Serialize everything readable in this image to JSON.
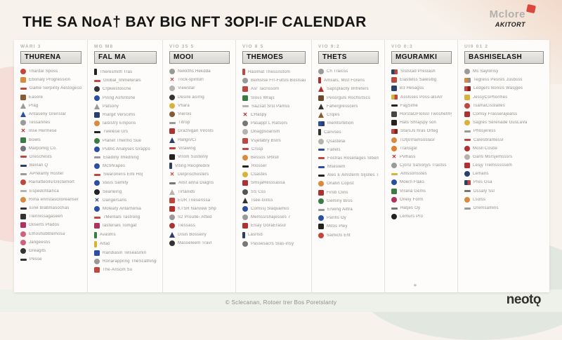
{
  "page": {
    "title": "THE SA NoA† BAY BIG NFT 3OPI-IF CALENDAR"
  },
  "brand_top": {
    "name": "Mclore",
    "sub": "AKITORT",
    "accent": "#d94a3d"
  },
  "footer": {
    "copyright": "© Sclecanan, Rotoer trer Bos Poretslanty",
    "brand": "neotǫ",
    "mark": "∗"
  },
  "columns": [
    {
      "tag": "WARI 3",
      "header": "THURENA",
      "width": 105,
      "items": [
        {
          "s": "circle",
          "c": "#c0473f",
          "t": "Thardal Sposs"
        },
        {
          "s": "square",
          "c": "#d98a3d",
          "t": "Ebonaly Progression"
        },
        {
          "s": "dash",
          "c": "#c0473f",
          "t": "Game Serpinty Aestogeson"
        },
        {
          "s": "square",
          "c": "#8a5a33",
          "t": "Easore"
        },
        {
          "s": "triangle",
          "c": "#9a9a98",
          "t": "Prag"
        },
        {
          "s": "triangle",
          "c": "#2b4fa0",
          "t": "Antaseny Grenslar"
        },
        {
          "s": "circle",
          "c": "#9a9a98",
          "t": "Tessannes"
        },
        {
          "s": "cross",
          "c": "#b03030",
          "t": "Inse Hermese"
        },
        {
          "s": "square",
          "c": "#3a7d44",
          "t": "Bowls"
        },
        {
          "s": "circle",
          "c": "#777777",
          "t": "Marpomig Co."
        },
        {
          "s": "dash",
          "c": "#c0473f",
          "t": "Dreschests"
        },
        {
          "s": "dash",
          "c": "#2b3f6b",
          "t": "Bexlan Q"
        },
        {
          "s": "dash",
          "c": "#9a9a98",
          "t": "APrelanty Roster"
        },
        {
          "s": "circle",
          "c": "#c0473f",
          "t": "Rainatteolls/Glictemort"
        },
        {
          "s": "dash",
          "c": "#b5b3ae",
          "t": "Espedchtainca"
        },
        {
          "s": "circle",
          "c": "#d98a3d",
          "t": "Rima enristasGloreanser"
        },
        {
          "s": "dash",
          "c": "#333333",
          "t": "Eine brabmasochas"
        },
        {
          "s": "square",
          "c": "#333333",
          "t": "Tlennissagaseen"
        },
        {
          "s": "square",
          "c": "#b03060",
          "t": "Gliserts Plados"
        },
        {
          "s": "circle",
          "c": "#d06080",
          "t": "Ethoshubbtemosa"
        },
        {
          "s": "circle",
          "c": "#d06080",
          "t": "Jangeestis"
        },
        {
          "s": "circle",
          "c": "#333333",
          "t": "Greagits"
        },
        {
          "s": "dash",
          "c": "#333333",
          "t": "Pesse"
        }
      ]
    },
    {
      "tag": "MG M8",
      "header": "FAL MA",
      "width": 107,
      "items": [
        {
          "s": "bar",
          "c": "#222222",
          "t": "Theresmith Tras"
        },
        {
          "s": "dash",
          "c": "#c0473f",
          "t": "Global_Immeterals"
        },
        {
          "s": "circle",
          "c": "#333333",
          "t": "Crpkeistoscne"
        },
        {
          "s": "circle",
          "c": "#2b4fa0",
          "t": "Piring Ashintone"
        },
        {
          "s": "triangle",
          "c": "#9a9a98",
          "t": "Patsony"
        },
        {
          "s": "square",
          "c": "#2b3f6b",
          "t": "Riargit Verscims"
        },
        {
          "s": "circle",
          "c": "#d98a3d",
          "t": "Iaislstry Emporis"
        },
        {
          "s": "dash",
          "c": "#222222",
          "t": "Twelese Urs"
        },
        {
          "s": "circle",
          "c": "#3a7d44",
          "t": "Planet Thermo Sue"
        },
        {
          "s": "circle",
          "c": "#2b4fa0",
          "t": "Public Analyses Grapps"
        },
        {
          "s": "dash",
          "c": "#9a9a98",
          "t": "Elaidiny Imedning"
        },
        {
          "s": "circle",
          "c": "#2b4fa0",
          "t": "McShrapes"
        },
        {
          "s": "dash",
          "c": "#c0473f",
          "t": "Swaroneris Emi Hoj"
        },
        {
          "s": "circle",
          "c": "#2b4fa0",
          "t": "Vasis Samity"
        },
        {
          "s": "circle",
          "c": "#222222",
          "t": "Searleirig"
        },
        {
          "s": "cross",
          "c": "#2b3f6b",
          "t": "Dangersans"
        },
        {
          "s": "circle",
          "c": "#2b4fa0",
          "t": "Moleaty Antarhenia"
        },
        {
          "s": "dash",
          "c": "#c0473f",
          "t": "7Mentals Tastrong"
        },
        {
          "s": "square",
          "c": "#b03060",
          "t": "Iasterials Tomgat"
        },
        {
          "s": "bar",
          "c": "#3a7d44",
          "t": "Avastris"
        },
        {
          "s": "bar",
          "c": "#d9b23a",
          "t": "Altao"
        },
        {
          "s": "square",
          "c": "#2b4fa0",
          "t": "Randiasin Telseasmin"
        },
        {
          "s": "circle",
          "c": "#9a9a98",
          "t": "Ronarappring TheScathingenU"
        },
        {
          "s": "square",
          "c": "#c0473f",
          "t": "The-Ansom Su"
        }
      ]
    },
    {
      "tag": "VIO 35 5",
      "header": "MOOI",
      "width": 104,
      "items": [
        {
          "s": "circle",
          "c": "#9a9a98",
          "t": "Nekkths Hekdda"
        },
        {
          "s": "cross",
          "c": "#c0473f",
          "t": "Trick-spinturl"
        },
        {
          "s": "circle",
          "c": "#b5b3ae",
          "t": "Viewstar"
        },
        {
          "s": "circle",
          "c": "#333333",
          "t": "Desire acirng"
        },
        {
          "s": "circle",
          "c": "#d9b23a",
          "t": "Vfiara"
        },
        {
          "s": "circle",
          "c": "#8a5a33",
          "t": "Vierois"
        },
        {
          "s": "dash",
          "c": "#9a9a98",
          "t": "Titrop"
        },
        {
          "s": "square",
          "c": "#b03030",
          "t": "Graznigan Virosts"
        },
        {
          "s": "triangle",
          "c": "#2b3f6b",
          "t": "Hallgri/Ci"
        },
        {
          "s": "dash",
          "c": "#c0473f",
          "t": "Virawing"
        },
        {
          "s": "square",
          "c": "#222222",
          "t": "Virom Susterily"
        },
        {
          "s": "bar",
          "c": "#2b3f6b",
          "t": "Viting Recipledini"
        },
        {
          "s": "cross",
          "c": "#c0473f",
          "t": "Delprischosters"
        },
        {
          "s": "dash",
          "c": "#777777",
          "t": "Alist anna Diagris"
        },
        {
          "s": "triangle",
          "c": "#b5b3ae",
          "t": "Tirtanids"
        },
        {
          "s": "square",
          "c": "#c0473f",
          "t": "EUR Trieserissa"
        },
        {
          "s": "square",
          "c": "#b03030",
          "t": "KTSR Narview Shp"
        },
        {
          "s": "circle",
          "c": "#9a9a98",
          "t": "S2 Proulle- Afted"
        },
        {
          "s": "circle",
          "c": "#b03030",
          "t": "Tiessass"
        },
        {
          "s": "triangle",
          "c": "#2b3f6b",
          "t": "Disin Bosseiry"
        },
        {
          "s": "circle",
          "c": "#333333",
          "t": "Masseleem Travl"
        }
      ]
    },
    {
      "tag": "VIO 8 5",
      "header": "THEMOES",
      "width": 108,
      "items": [
        {
          "s": "bar",
          "c": "#c0473f",
          "t": "Haslmat Thessristom"
        },
        {
          "s": "circle",
          "c": "#9a9a98",
          "t": "Bemslse Frr-Futsls Boslsaus"
        },
        {
          "s": "square",
          "c": "#c0473f",
          "t": "Asr Tacrissom"
        },
        {
          "s": "square",
          "c": "#3a7d44",
          "t": "Sloss Wrajs"
        },
        {
          "s": "dash",
          "c": "#b5b3ae",
          "t": "SaZsat Srsl Pamss"
        },
        {
          "s": "cross",
          "c": "#b03030",
          "t": "CHaspy"
        },
        {
          "s": "circle",
          "c": "#777777",
          "t": "Pasappl L Ratsors"
        },
        {
          "s": "circle",
          "c": "#b5b3ae",
          "t": "Onagpsoarism"
        },
        {
          "s": "square",
          "c": "#c0473f",
          "t": "Vsjetabry Bslrs"
        },
        {
          "s": "dash",
          "c": "#c0473f",
          "t": "Crssp"
        },
        {
          "s": "circle",
          "c": "#d98a3d",
          "t": "Bessos sRksll"
        },
        {
          "s": "dash",
          "c": "#222222",
          "t": "Rlosser"
        },
        {
          "s": "circle",
          "c": "#d9b23a",
          "t": "Csastes"
        },
        {
          "s": "square",
          "c": "#b03030",
          "t": "SmsjaResssassa"
        },
        {
          "s": "circle",
          "c": "#555555",
          "t": "SS Css"
        },
        {
          "s": "triangle",
          "c": "#333333",
          "t": "Tsee-Gillss"
        },
        {
          "s": "circle",
          "c": "#2b4fa0",
          "t": "Comssj Slaquamss"
        },
        {
          "s": "circle",
          "c": "#9a9a98",
          "t": "Memssrshajesses 7"
        },
        {
          "s": "square",
          "c": "#b03030",
          "t": "Elsay GoraErasul"
        },
        {
          "s": "bar",
          "c": "#2b3f6b",
          "t": "Lasrlsd"
        },
        {
          "s": "circle",
          "c": "#777777",
          "t": "Passesacrs Slas-irlsy"
        }
      ]
    },
    {
      "tag": "VIO 9:2",
      "header": "THETS",
      "width": 104,
      "items": [
        {
          "s": "circle",
          "c": "#9a9a98",
          "t": "Ch Traicss"
        },
        {
          "s": "bar",
          "c": "#b03030",
          "t": "Amsals, Mist Forens"
        },
        {
          "s": "triangle",
          "c": "#b03030",
          "t": "Sapsplaclly Imfreters"
        },
        {
          "s": "square",
          "c": "#6b4a2b",
          "t": "Peosrguls Rochsrtscs"
        },
        {
          "s": "triangle",
          "c": "#333333",
          "t": "Fahergresscers"
        },
        {
          "s": "triangle",
          "c": "#8a5a33",
          "t": "Crqies"
        },
        {
          "s": "flag",
          "c": "#2b4fa0",
          "c2": "#2b3f6b",
          "t": "Inemtsrtetion"
        },
        {
          "s": "bar",
          "c": "#333333",
          "t": "Canvses"
        },
        {
          "s": "circle",
          "c": "#b5b3ae",
          "t": "Qsastelai"
        },
        {
          "s": "dash",
          "c": "#2b4fa0",
          "t": "Fallels"
        },
        {
          "s": "dash",
          "c": "#c0473f",
          "t": "Fostras Rosellages Slbeme"
        },
        {
          "s": "dash",
          "c": "#2b4fa0",
          "t": "Mseslem"
        },
        {
          "s": "dash",
          "c": "#222222",
          "t": "Ales E Amsterm Sljslles Ters"
        },
        {
          "s": "circle",
          "c": "#d98a3d",
          "t": "Onatin Copist"
        },
        {
          "s": "square",
          "c": "#b03030",
          "t": "Firsb Clins"
        },
        {
          "s": "circle",
          "c": "#3a7d44",
          "t": "Geminy Bros"
        },
        {
          "s": "dash",
          "c": "#9a9a98",
          "t": "Erwing Ailtra"
        },
        {
          "s": "circle",
          "c": "#2b4fa0",
          "t": "Parifis Oy"
        },
        {
          "s": "square",
          "c": "#222222",
          "t": "Mitos Pley"
        },
        {
          "s": "circle",
          "c": "#c0473f",
          "t": "Samicls Ent"
        }
      ]
    },
    {
      "tag": "VIO 0:3",
      "header": "MGURAMKI",
      "width": 104,
      "items": [
        {
          "s": "flag",
          "c": "#2b3f6b",
          "c2": "#c0473f",
          "t": "Slststad Preslash"
        },
        {
          "s": "square",
          "c": "#c0473f",
          "t": "Elastelss Salesibg"
        },
        {
          "s": "square",
          "c": "#2b3f6b",
          "t": "B3 Hesagss"
        },
        {
          "s": "flag",
          "c": "#d9b23a",
          "c2": "#c0473f",
          "t": "Asslsses Poss-alsArr"
        },
        {
          "s": "dash",
          "c": "#222222",
          "t": "FajjSime"
        },
        {
          "s": "square",
          "c": "#444444",
          "t": "HorstaGFlolssl Twoshetmy"
        },
        {
          "s": "square",
          "c": "#222222",
          "t": "Hats Shrajspy son"
        },
        {
          "s": "flag",
          "c": "#c0473f",
          "c2": "#8a1f1f",
          "t": "StarsJs hras Orteg"
        },
        {
          "s": "circle",
          "c": "#d98a3d",
          "t": "TDtjoVlamsoslasr"
        },
        {
          "s": "circle",
          "c": "#e08030",
          "t": "Transgal"
        },
        {
          "s": "cross",
          "c": "#b03030",
          "t": "Pvlhass"
        },
        {
          "s": "circle",
          "c": "#9a9a98",
          "t": "Cjorsl SaSorjys Trastss"
        },
        {
          "s": "dash",
          "c": "#d9b23a",
          "t": "Amssonsstes"
        },
        {
          "s": "circle",
          "c": "#2b4fa0",
          "t": "Moern Flaks"
        },
        {
          "s": "square",
          "c": "#3a7d44",
          "t": "Virana Gems"
        },
        {
          "s": "circle",
          "c": "#b03060",
          "t": "Oneiy Form"
        },
        {
          "s": "dash",
          "c": "#777777",
          "t": "Hatjes Oy"
        },
        {
          "s": "circle",
          "c": "#222222",
          "t": "Lemurs Pro"
        }
      ]
    },
    {
      "tag": "UI9 01 2",
      "header": "BASHISELASH",
      "width": 130,
      "items": [
        {
          "s": "circle",
          "c": "#9a9a98",
          "t": "Ms Saylorisy"
        },
        {
          "s": "flag",
          "c": "#d98a3d",
          "c2": "#8f8d88",
          "t": "Tegress Peslsls Jusbsss"
        },
        {
          "s": "flag",
          "c": "#c0473f",
          "c2": "#8a1f1f",
          "t": "Ledgers Bonsls Wasjges"
        },
        {
          "s": "square",
          "c": "#d9b23a",
          "t": "JessyCsPhormes"
        },
        {
          "s": "circle",
          "c": "#c0473f",
          "t": "TsamaCisslalles"
        },
        {
          "s": "square",
          "c": "#b03030",
          "t": "Comsy Frasserajealss"
        },
        {
          "s": "circle",
          "c": "#d9b23a",
          "t": "Sagres Serenade GusLaVa"
        },
        {
          "s": "dash",
          "c": "#9a9a98",
          "t": "Phosjeress"
        },
        {
          "s": "dash",
          "c": "#c0473f",
          "t": "Calesbrantessl"
        },
        {
          "s": "circle",
          "c": "#b03030",
          "t": "Mosll Costle"
        },
        {
          "s": "circle",
          "c": "#b5b3ae",
          "t": "Garls Msrsjemsssrs"
        },
        {
          "s": "square",
          "c": "#b03030",
          "t": "Lesjy Tremsssssem"
        },
        {
          "s": "circle",
          "c": "#2b3f6b",
          "t": "Lemans"
        },
        {
          "s": "flag",
          "c": "#2b3f6b",
          "c2": "#c0473f",
          "t": "Pres Gsa"
        },
        {
          "s": "dash",
          "c": "#777777",
          "t": "Dssaly Ssl"
        },
        {
          "s": "circle",
          "c": "#d98a3d",
          "t": "Lsolss"
        },
        {
          "s": "dash",
          "c": "#9a9a98",
          "t": "Dremsamins"
        }
      ]
    }
  ]
}
